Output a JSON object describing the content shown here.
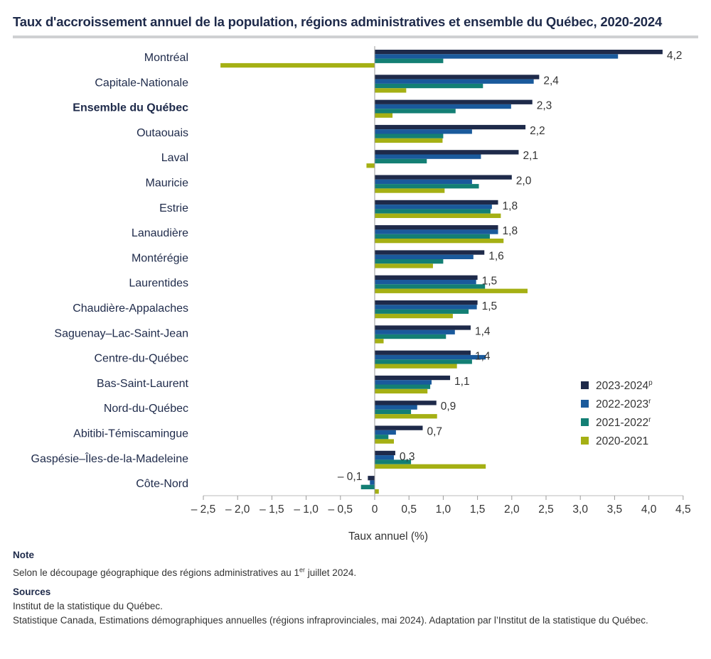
{
  "title": "Taux d'accroissement annuel de la population, régions administratives et ensemble du Québec, 2020-2024",
  "chart_data": {
    "type": "bar",
    "orientation": "horizontal",
    "title": "Taux d'accroissement annuel de la population, régions administratives et ensemble du Québec, 2020-2024",
    "xlabel": "Taux annuel (%)",
    "ylabel": "",
    "xlim": [
      -2.5,
      4.5
    ],
    "xticks": [
      -2.5,
      -2.0,
      -1.5,
      -1.0,
      -0.5,
      0,
      0.5,
      1.0,
      1.5,
      2.0,
      2.5,
      3.0,
      3.5,
      4.0,
      4.5
    ],
    "xtick_labels": [
      "– 2,5",
      "– 2,0",
      "– 1,5",
      "– 1,0",
      "– 0,5",
      "0",
      "0,5",
      "1,0",
      "1,5",
      "2,0",
      "2,5",
      "3,0",
      "3,5",
      "4,0",
      "4,5"
    ],
    "grid": false,
    "legend_position": "right",
    "categories": [
      "Montréal",
      "Capitale-Nationale",
      "Ensemble du Québec",
      "Outaouais",
      "Laval",
      "Mauricie",
      "Estrie",
      "Lanaudière",
      "Montérégie",
      "Laurentides",
      "Chaudière-Appalaches",
      "Saguenay–Lac-Saint-Jean",
      "Centre-du-Québec",
      "Bas-Saint-Laurent",
      "Nord-du-Québec",
      "Abitibi-Témiscamingue",
      "Gaspésie–Îles-de-la-Madeleine",
      "Côte-Nord"
    ],
    "highlighted_category": "Ensemble du Québec",
    "series": [
      {
        "name": "2023-2024",
        "superscript": "p",
        "color": "#1e2a4a",
        "values": [
          4.2,
          2.4,
          2.3,
          2.2,
          2.1,
          2.0,
          1.8,
          1.8,
          1.6,
          1.5,
          1.5,
          1.4,
          1.4,
          1.1,
          0.9,
          0.7,
          0.3,
          -0.1
        ],
        "data_labels": [
          "4,2",
          "2,4",
          "2,3",
          "2,2",
          "2,1",
          "2,0",
          "1,8",
          "1,8",
          "1,6",
          "1,5",
          "1,5",
          "1,4",
          "1,4",
          "1,1",
          "0,9",
          "0,7",
          "0,3",
          "– 0,1"
        ]
      },
      {
        "name": "2022-2023",
        "superscript": "r",
        "color": "#1a5a9c",
        "values": [
          3.55,
          2.32,
          1.99,
          1.42,
          1.55,
          1.42,
          1.71,
          1.8,
          1.44,
          1.48,
          1.49,
          1.17,
          1.62,
          0.83,
          0.62,
          0.31,
          0.28,
          -0.07
        ]
      },
      {
        "name": "2021-2022",
        "superscript": "r",
        "color": "#137f74",
        "values": [
          1.0,
          1.58,
          1.18,
          1.0,
          0.76,
          1.52,
          1.69,
          1.68,
          1.0,
          1.61,
          1.37,
          1.04,
          1.42,
          0.81,
          0.53,
          0.2,
          0.53,
          -0.2
        ]
      },
      {
        "name": "2020-2021",
        "superscript": "",
        "color": "#a5b014",
        "values": [
          -2.25,
          0.46,
          0.26,
          0.99,
          -0.12,
          1.02,
          1.84,
          1.88,
          0.85,
          2.23,
          1.14,
          0.13,
          1.2,
          0.77,
          0.91,
          0.28,
          1.62,
          0.06
        ]
      }
    ]
  },
  "note": {
    "heading": "Note",
    "text_before": "Selon le découpage géographique des régions administratives au 1",
    "sup": "er",
    "text_after": " juillet 2024."
  },
  "sources": {
    "heading": "Sources",
    "lines": [
      "Institut de la statistique du Québec.",
      "Statistique Canada, Estimations démographiques annuelles (régions infraprovinciales, mai 2024). Adaptation par l’Institut de la statistique du Québec."
    ]
  }
}
